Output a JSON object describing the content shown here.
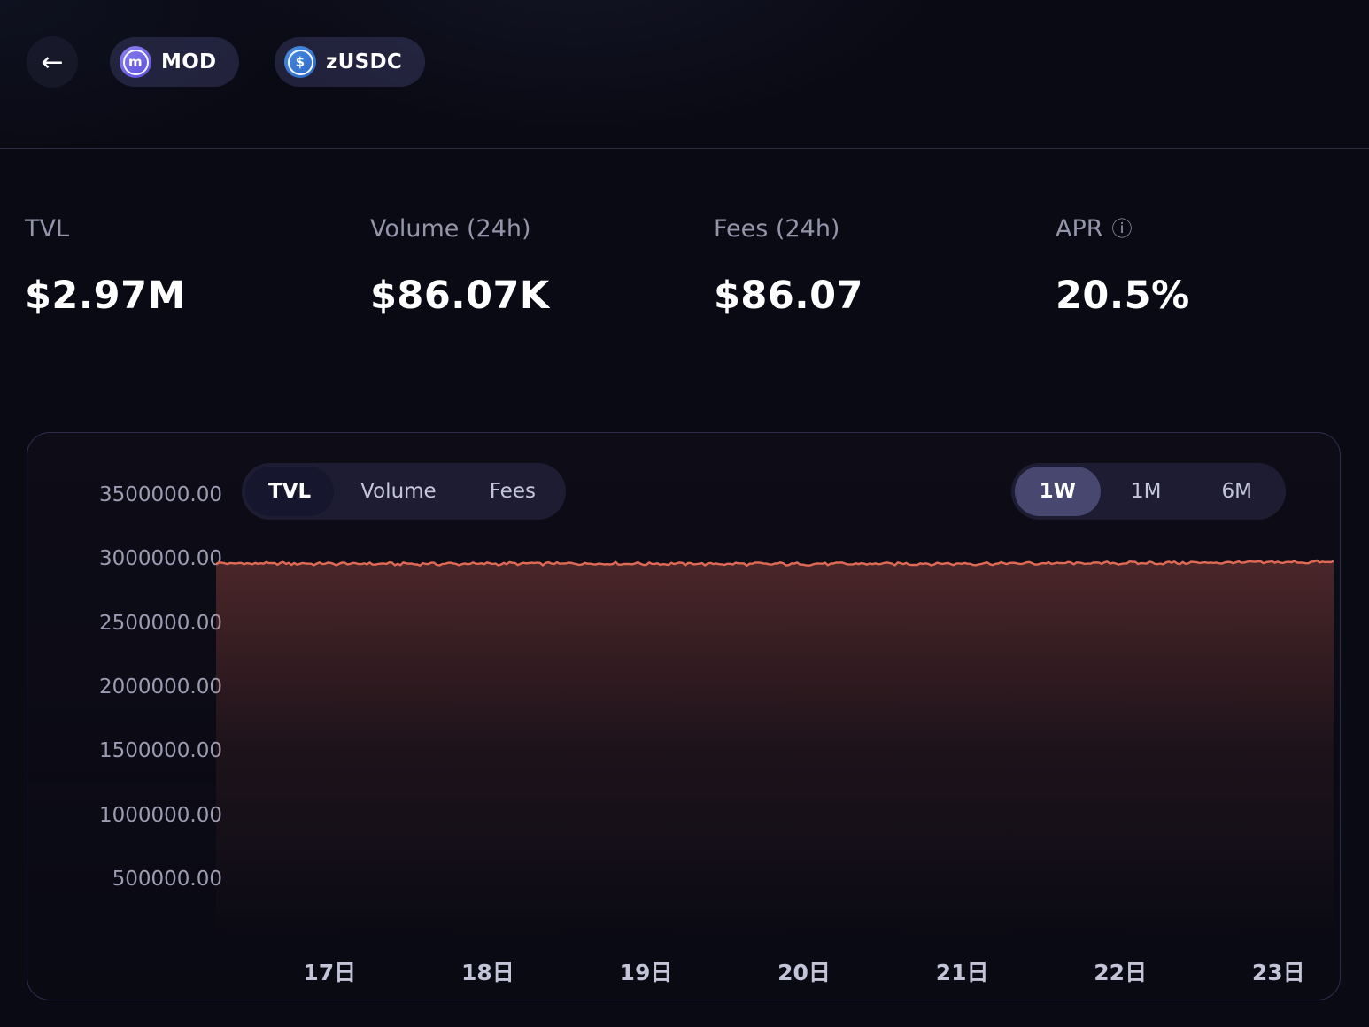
{
  "icons": {
    "back": "←",
    "info": "ⓘ",
    "mod_letter": "m",
    "usdc_symbol": "$"
  },
  "header": {
    "tokens": [
      {
        "symbol": "MOD",
        "icon": "mod-token-icon"
      },
      {
        "symbol": "zUSDC",
        "icon": "usdc-token-icon"
      }
    ]
  },
  "stats": {
    "items": [
      {
        "label": "TVL",
        "value": "$2.97M"
      },
      {
        "label": "Volume (24h)",
        "value": "$86.07K"
      },
      {
        "label": "Fees (24h)",
        "value": "$86.07"
      },
      {
        "label": "APR",
        "value": "20.5%"
      }
    ]
  },
  "chart_controls": {
    "metric_tabs": [
      {
        "label": "TVL",
        "active": true
      },
      {
        "label": "Volume",
        "active": false
      },
      {
        "label": "Fees",
        "active": false
      }
    ],
    "range_tabs": [
      {
        "label": "1W",
        "active": true
      },
      {
        "label": "1M",
        "active": false
      },
      {
        "label": "6M",
        "active": false
      }
    ]
  },
  "chart_data": {
    "type": "area",
    "x_labels": [
      "17日",
      "18日",
      "19日",
      "20日",
      "21日",
      "22日",
      "23日"
    ],
    "values": [
      2961000,
      2957000,
      2960000,
      2956000,
      2959000,
      2964000,
      2972000
    ],
    "ylim": [
      0,
      3500000
    ],
    "ytick_step": 500000,
    "ytick_labels": [
      "3500000.00",
      "3000000.00",
      "2500000.00",
      "2000000.00",
      "1500000.00",
      "1000000.00",
      "500000.00"
    ],
    "line_color": "#e06a55",
    "fill_color": "#c25a4a",
    "grid": false,
    "legend": "none"
  }
}
